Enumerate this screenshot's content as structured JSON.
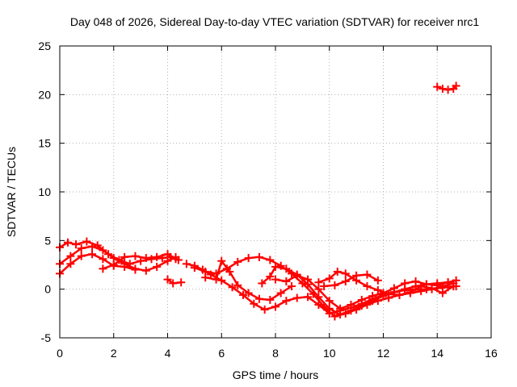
{
  "chart_data": {
    "type": "scatter",
    "title": "Day 048 of 2026, Sidereal Day-to-day VTEC variation (SDTVAR) for receiver nrc1",
    "xlabel": "GPS time / hours",
    "ylabel": "SDTVAR / TECUs",
    "xlim": [
      0,
      16
    ],
    "ylim": [
      -5,
      25
    ],
    "xticks": [
      0,
      2,
      4,
      6,
      8,
      10,
      12,
      14,
      16
    ],
    "yticks": [
      -5,
      0,
      5,
      10,
      15,
      20,
      25
    ],
    "xtick_labels": [
      "0",
      "2",
      "4",
      "6",
      "8",
      "10",
      "12",
      "14",
      "16"
    ],
    "ytick_labels": [
      "-5",
      "0",
      "5",
      "10",
      "15",
      "20",
      "25"
    ],
    "grid": true,
    "marker": "plus",
    "color": "#ff0000",
    "series": [
      {
        "name": "track-1",
        "x": [
          0.0,
          0.3,
          0.6,
          1.0,
          1.4,
          1.8,
          2.2,
          2.6,
          3.0,
          3.4,
          3.8,
          4.1,
          4.3
        ],
        "y": [
          4.3,
          4.8,
          4.6,
          4.9,
          4.5,
          3.6,
          3.0,
          2.6,
          2.9,
          3.1,
          3.2,
          3.3,
          3.1
        ]
      },
      {
        "name": "track-2",
        "x": [
          0.0,
          0.4,
          0.8,
          1.2,
          1.6,
          2.0,
          2.4,
          2.8,
          3.2,
          3.6,
          4.0,
          4.3
        ],
        "y": [
          2.6,
          3.4,
          4.2,
          4.4,
          4.0,
          3.2,
          2.6,
          2.1,
          1.9,
          2.3,
          2.9,
          3.3
        ]
      },
      {
        "name": "track-3",
        "x": [
          0.0,
          0.4,
          0.8,
          1.2,
          1.6,
          2.0,
          2.4,
          2.8
        ],
        "y": [
          1.6,
          2.6,
          3.4,
          3.6,
          3.1,
          2.4,
          2.3,
          2.0
        ]
      },
      {
        "name": "track-4",
        "x": [
          1.6,
          2.0,
          2.4,
          2.8,
          3.2,
          3.6,
          4.0,
          4.4
        ],
        "y": [
          2.1,
          2.5,
          3.3,
          3.4,
          3.2,
          3.3,
          3.6,
          3.0
        ]
      },
      {
        "name": "track-5",
        "x": [
          4.0,
          4.2,
          4.5
        ],
        "y": [
          1.0,
          0.6,
          0.7
        ]
      },
      {
        "name": "track-6",
        "x": [
          4.7,
          5.0,
          5.3,
          5.6,
          6.0,
          6.4,
          6.8,
          7.2,
          7.6,
          8.0,
          8.4,
          8.8,
          9.2,
          9.6,
          10.0,
          10.4,
          10.8,
          11.2,
          11.6,
          12.0,
          12.4,
          12.8,
          13.2,
          13.6,
          14.0,
          14.4,
          14.7
        ],
        "y": [
          2.6,
          2.4,
          2.0,
          1.5,
          0.9,
          0.2,
          -0.6,
          -1.5,
          -2.1,
          -1.8,
          -1.2,
          -0.9,
          -0.8,
          -1.6,
          -2.5,
          -2.2,
          -1.9,
          -1.5,
          -1.0,
          -0.6,
          -0.3,
          -0.1,
          0.0,
          0.0,
          0.1,
          0.2,
          0.3
        ]
      },
      {
        "name": "track-7",
        "x": [
          5.0,
          5.4,
          5.8,
          6.2,
          6.6,
          7.0,
          7.4,
          7.8,
          8.2,
          8.6,
          9.0,
          9.4,
          9.8,
          10.2,
          10.6,
          11.0,
          11.4,
          11.8,
          12.2,
          12.6,
          13.0,
          13.4,
          13.8,
          14.2,
          14.6
        ],
        "y": [
          2.2,
          1.8,
          1.6,
          2.1,
          2.8,
          3.2,
          3.3,
          3.0,
          2.4,
          1.6,
          0.6,
          -0.5,
          -1.8,
          -2.8,
          -2.5,
          -2.1,
          -1.6,
          -1.2,
          -0.9,
          -0.6,
          -0.4,
          -0.2,
          0.0,
          0.3,
          0.6
        ]
      },
      {
        "name": "track-8",
        "x": [
          5.4,
          5.8,
          6.0,
          6.3,
          6.6,
          7.0,
          7.4,
          7.8,
          8.2,
          8.6
        ],
        "y": [
          1.2,
          1.0,
          2.9,
          1.8,
          0.4,
          -0.4,
          -1.0,
          -1.1,
          -0.4,
          0.3
        ]
      },
      {
        "name": "track-9",
        "x": [
          7.5,
          7.8,
          8.0,
          8.4,
          8.8,
          9.2,
          9.6,
          10.0,
          10.4,
          10.8,
          11.2,
          11.6,
          12.0,
          12.4,
          12.8,
          13.2,
          13.6,
          14.0,
          14.4,
          14.7
        ],
        "y": [
          0.6,
          1.3,
          2.3,
          2.1,
          1.5,
          0.5,
          -0.8,
          -2.0,
          -2.6,
          -2.2,
          -1.7,
          -1.2,
          -0.7,
          -0.3,
          0.0,
          0.3,
          0.5,
          0.6,
          0.7,
          0.9
        ]
      },
      {
        "name": "track-10",
        "x": [
          8.0,
          8.4,
          8.8,
          9.2,
          9.6,
          10.0,
          10.4,
          10.8,
          11.2,
          11.6,
          12.0,
          12.4,
          12.8,
          13.2,
          13.6,
          14.0,
          14.4
        ],
        "y": [
          1.0,
          0.8,
          1.4,
          1.0,
          0.0,
          -1.2,
          -2.0,
          -1.6,
          -1.1,
          -0.7,
          -0.4,
          0.1,
          0.6,
          0.8,
          0.5,
          0.4,
          0.7
        ]
      },
      {
        "name": "track-11",
        "x": [
          9.6,
          10.0,
          10.3,
          10.6,
          11.0,
          11.4,
          11.8,
          12.2,
          12.6,
          13.0,
          13.4,
          13.8,
          14.2,
          14.6
        ],
        "y": [
          0.7,
          1.1,
          1.8,
          1.6,
          0.9,
          0.3,
          -0.1,
          -0.5,
          -0.6,
          -0.3,
          0.3,
          0.1,
          -0.4,
          0.3
        ]
      },
      {
        "name": "track-12",
        "x": [
          9.8,
          10.2,
          10.6,
          11.0,
          11.4,
          11.8
        ],
        "y": [
          0.3,
          0.4,
          0.8,
          1.4,
          1.5,
          0.9
        ]
      },
      {
        "name": "track-13",
        "x": [
          14.0,
          14.2,
          14.4,
          14.6,
          14.7
        ],
        "y": [
          20.8,
          20.6,
          20.5,
          20.6,
          20.9
        ]
      }
    ]
  }
}
